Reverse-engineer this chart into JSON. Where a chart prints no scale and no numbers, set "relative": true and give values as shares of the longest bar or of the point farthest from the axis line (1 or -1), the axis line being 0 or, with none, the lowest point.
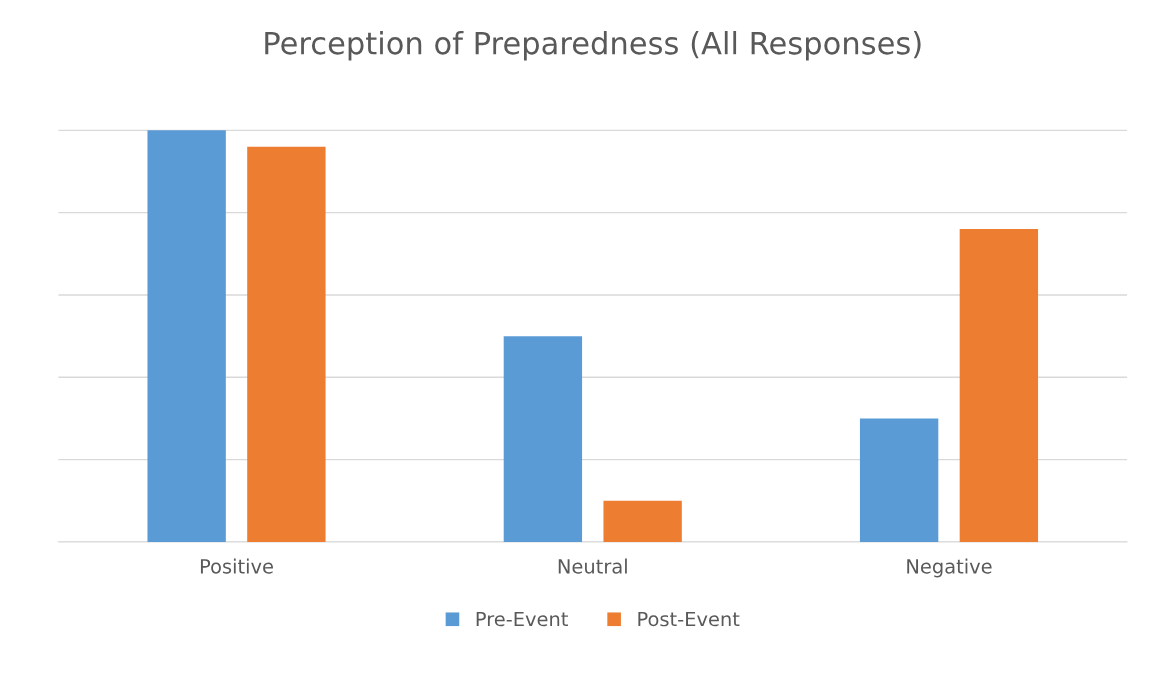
{
  "chart_data": {
    "type": "bar",
    "title": "Perception of Preparedness (All Responses)",
    "categories": [
      "Positive",
      "Neutral",
      "Negative"
    ],
    "series": [
      {
        "name": "Pre-Event",
        "color": "#5b9bd5",
        "values": [
          1,
          0.5,
          0.3
        ]
      },
      {
        "name": "Post-Event",
        "color": "#ed7d31",
        "values": [
          0.96,
          0.1,
          0.76
        ]
      }
    ],
    "relative": true,
    "grid": "y",
    "legend": "bottom"
  }
}
